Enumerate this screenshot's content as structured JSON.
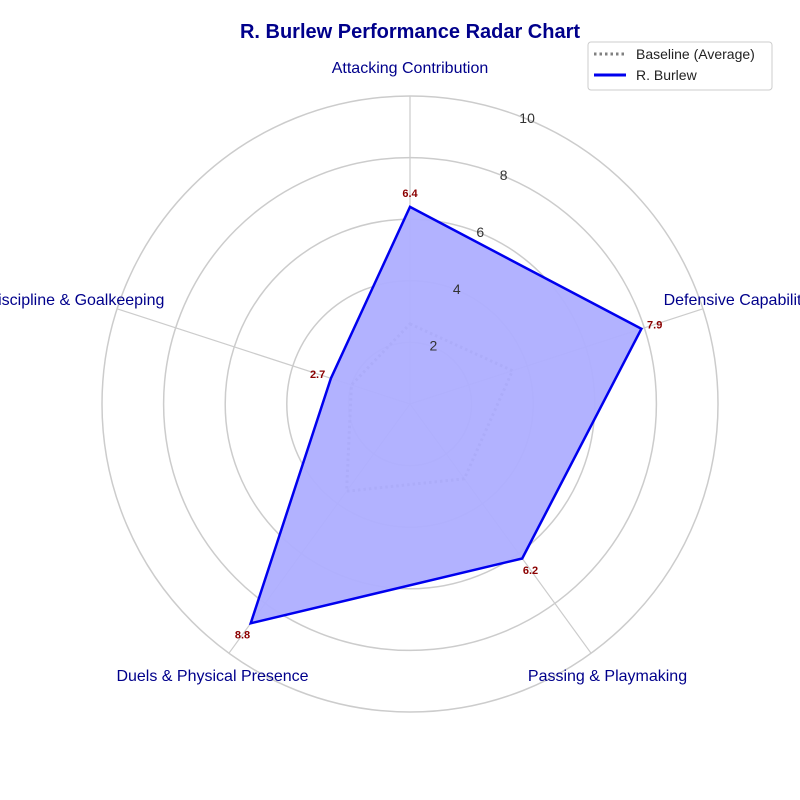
{
  "chart_data": {
    "type": "radar",
    "title": "R. Burlew Performance Radar Chart",
    "categories": [
      "Attacking Contribution",
      "Defensive Capability",
      "Passing & Playmaking",
      "Duels & Physical Presence",
      "Discipline & Goalkeeping"
    ],
    "rlim": [
      0,
      10
    ],
    "rticks": [
      "2",
      "4",
      "6",
      "8",
      "10"
    ],
    "grid": true,
    "legend_position": "top-right",
    "series": [
      {
        "name": "Baseline (Average)",
        "values": [
          2.6,
          3.5,
          3.0,
          3.5,
          2.0
        ],
        "style": "dotted",
        "color": "#808080",
        "filled": false
      },
      {
        "name": "R. Burlew",
        "values": [
          6.4,
          7.9,
          6.2,
          8.8,
          2.7
        ],
        "style": "solid",
        "color": "#0000ee",
        "fill": "#aeaeff",
        "filled": true
      }
    ],
    "value_labels": [
      "6.4",
      "7.9",
      "6.2",
      "8.8",
      "2.7"
    ],
    "colors": {
      "title": "#00008b",
      "axis_label": "#00008b",
      "value_label": "#8b0000",
      "grid": "#cccccc"
    }
  }
}
